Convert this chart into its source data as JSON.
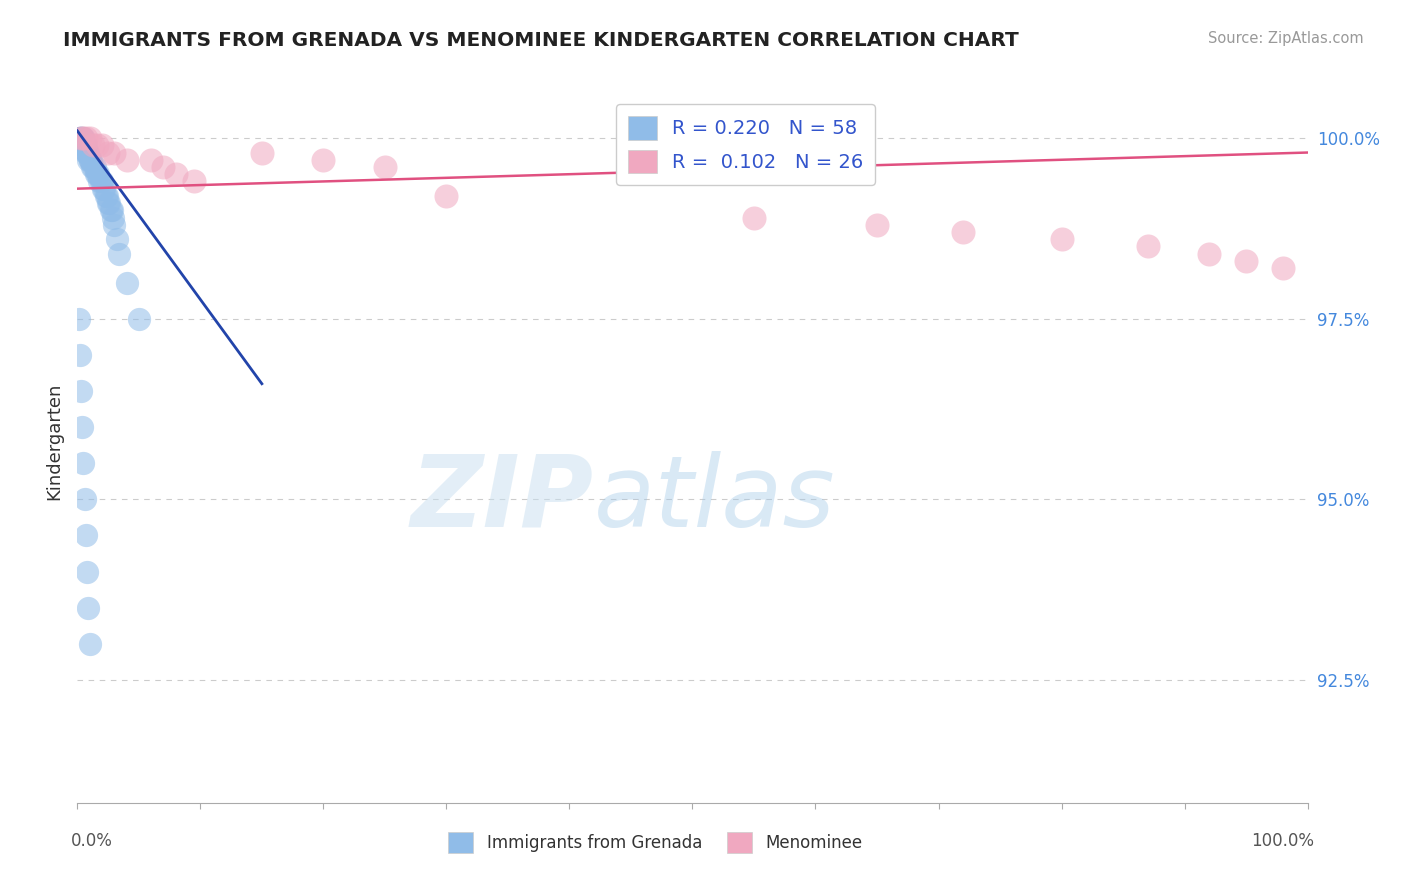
{
  "title": "IMMIGRANTS FROM GRENADA VS MENOMINEE KINDERGARTEN CORRELATION CHART",
  "source_text": "Source: ZipAtlas.com",
  "ylabel": "Kindergarten",
  "y_tick_labels": [
    "92.5%",
    "95.0%",
    "97.5%",
    "100.0%"
  ],
  "y_tick_values": [
    0.925,
    0.95,
    0.975,
    1.0
  ],
  "blue_color": "#90bce8",
  "pink_color": "#f0a8c0",
  "blue_line_color": "#2244aa",
  "pink_line_color": "#e05080",
  "watermark_zip": "ZIP",
  "watermark_atlas": "atlas",
  "background_color": "#ffffff",
  "grid_color": "#cccccc",
  "xlim": [
    0.0,
    1.0
  ],
  "ylim": [
    0.908,
    1.008
  ],
  "blue_scatter_x": [
    0.001,
    0.001,
    0.002,
    0.002,
    0.002,
    0.003,
    0.003,
    0.003,
    0.004,
    0.004,
    0.005,
    0.005,
    0.005,
    0.006,
    0.006,
    0.006,
    0.007,
    0.007,
    0.008,
    0.008,
    0.009,
    0.009,
    0.01,
    0.01,
    0.011,
    0.012,
    0.013,
    0.014,
    0.015,
    0.016,
    0.017,
    0.018,
    0.019,
    0.02,
    0.021,
    0.022,
    0.023,
    0.024,
    0.025,
    0.026,
    0.027,
    0.028,
    0.029,
    0.03,
    0.032,
    0.034,
    0.04,
    0.05,
    0.001,
    0.002,
    0.003,
    0.004,
    0.005,
    0.006,
    0.007,
    0.008,
    0.009,
    0.01
  ],
  "blue_scatter_y": [
    1.0,
    1.0,
    1.0,
    1.0,
    1.0,
    1.0,
    1.0,
    1.0,
    1.0,
    1.0,
    1.0,
    1.0,
    0.999,
    0.999,
    0.999,
    0.999,
    0.999,
    0.998,
    0.998,
    0.998,
    0.998,
    0.997,
    0.997,
    0.997,
    0.997,
    0.996,
    0.996,
    0.996,
    0.995,
    0.995,
    0.995,
    0.994,
    0.994,
    0.994,
    0.993,
    0.993,
    0.992,
    0.992,
    0.991,
    0.991,
    0.99,
    0.99,
    0.989,
    0.988,
    0.986,
    0.984,
    0.98,
    0.975,
    0.975,
    0.97,
    0.965,
    0.96,
    0.955,
    0.95,
    0.945,
    0.94,
    0.935,
    0.93
  ],
  "pink_scatter_x": [
    0.003,
    0.005,
    0.007,
    0.01,
    0.013,
    0.016,
    0.02,
    0.025,
    0.03,
    0.04,
    0.06,
    0.07,
    0.08,
    0.095,
    0.3,
    0.55,
    0.65,
    0.72,
    0.8,
    0.87,
    0.92,
    0.95,
    0.98,
    0.15,
    0.2,
    0.25
  ],
  "pink_scatter_y": [
    1.0,
    1.0,
    1.0,
    1.0,
    0.999,
    0.999,
    0.999,
    0.998,
    0.998,
    0.997,
    0.997,
    0.996,
    0.995,
    0.994,
    0.992,
    0.989,
    0.988,
    0.987,
    0.986,
    0.985,
    0.984,
    0.983,
    0.982,
    0.998,
    0.997,
    0.996
  ],
  "blue_trendline_x": [
    0.0,
    0.15
  ],
  "blue_trendline_y": [
    1.001,
    0.966
  ],
  "pink_trendline_x": [
    0.0,
    1.0
  ],
  "pink_trendline_y": [
    0.993,
    0.998
  ]
}
